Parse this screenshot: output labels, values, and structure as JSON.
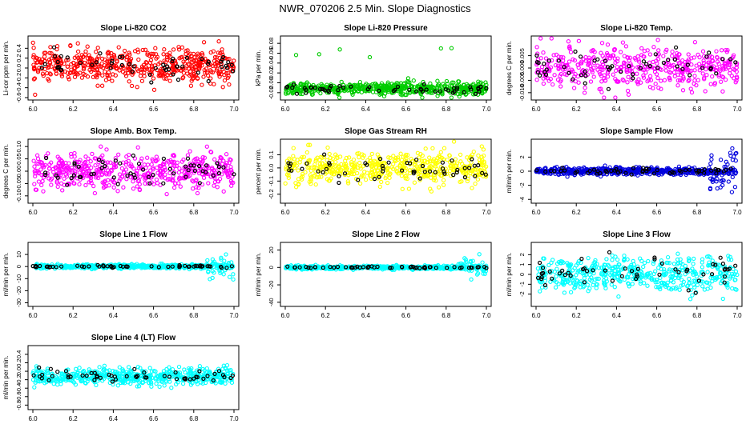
{
  "page": {
    "title": "NWR_070206  2.5 Min. Slope Diagnostics"
  },
  "chart_data": [
    {
      "type": "scatter",
      "title": "Slope Li-820 CO2",
      "ylabel": "Li-cor ppm per min.",
      "xlim": [
        6.0,
        7.0
      ],
      "ylim": [
        -0.6,
        0.6
      ],
      "yticks": [
        "-0.6",
        "-0.4",
        "-0.2",
        "0.0",
        "0.2",
        "0.4"
      ],
      "xticks": [
        "6.0",
        "6.2",
        "6.4",
        "6.6",
        "6.8",
        "7.0"
      ],
      "color": "#ff0000",
      "center": 0.05,
      "spread": 0.17,
      "overlay_spread": 0.12,
      "n": 520
    },
    {
      "type": "scatter",
      "title": "Slope Li-820 Pressure",
      "ylabel": "kPa per min.",
      "xlim": [
        6.0,
        7.0
      ],
      "ylim": [
        -0.03,
        0.09
      ],
      "yticks": [
        "-0.02",
        "0.00",
        "0.02",
        "0.04",
        "0.06",
        "0.08"
      ],
      "xticks": [
        "6.0",
        "6.2",
        "6.4",
        "6.6",
        "6.8",
        "7.0"
      ],
      "color": "#00cc00",
      "center": -0.012,
      "spread": 0.006,
      "overlay_spread": 0.005,
      "n": 560
    },
    {
      "type": "scatter",
      "title": "Slope Li-820 Temp.",
      "ylabel": "degrees C per min.",
      "xlim": [
        6.0,
        7.0
      ],
      "ylim": [
        -0.012,
        0.012
      ],
      "yticks": [
        "-0.010",
        "-0.005",
        "0.000",
        "0.005"
      ],
      "xticks": [
        "6.0",
        "6.2",
        "6.4",
        "6.6",
        "6.8",
        "7.0"
      ],
      "color": "#ff00ff",
      "center": 0.0005,
      "spread": 0.004,
      "overlay_spread": 0.003,
      "n": 460
    },
    {
      "type": "scatter",
      "title": "Slope Amb. Box Temp.",
      "ylabel": "degrees C per min.",
      "xlim": [
        6.0,
        7.0
      ],
      "ylim": [
        -0.12,
        0.12
      ],
      "yticks": [
        "-0.10",
        "-0.05",
        "0.00",
        "0.05",
        "0.10"
      ],
      "xticks": [
        "6.0",
        "6.2",
        "6.4",
        "6.6",
        "6.8",
        "7.0"
      ],
      "color": "#ff00ff",
      "center": 0.0,
      "spread": 0.035,
      "overlay_spread": 0.03,
      "n": 500
    },
    {
      "type": "scatter",
      "title": "Slope Gas Stream RH",
      "ylabel": "percent per min.",
      "xlim": [
        6.0,
        7.0
      ],
      "ylim": [
        -0.25,
        0.2
      ],
      "yticks": [
        "-0.2",
        "-0.1",
        "0.0",
        "0.1"
      ],
      "xticks": [
        "6.0",
        "6.2",
        "6.4",
        "6.6",
        "6.8",
        "7.0"
      ],
      "color": "#ffff00",
      "center": 0.0,
      "spread": 0.06,
      "overlay_spread": 0.05,
      "n": 520
    },
    {
      "type": "scatter",
      "title": "Slope Sample Flow",
      "ylabel": "ml/min per min.",
      "xlim": [
        6.0,
        7.0
      ],
      "ylim": [
        -4.2,
        4.2
      ],
      "yticks": [
        "-4",
        "-2",
        "0",
        "2"
      ],
      "xticks": [
        "6.0",
        "6.2",
        "6.4",
        "6.6",
        "6.8",
        "7.0"
      ],
      "color": "#0000dd",
      "center": 0.0,
      "spread": 0.25,
      "overlay_spread": 0.2,
      "n": 560
    },
    {
      "type": "scatter",
      "title": "Slope Line 1 Flow",
      "ylabel": "ml/min per min.",
      "xlim": [
        6.0,
        7.0
      ],
      "ylim": [
        -31,
        18
      ],
      "yticks": [
        "-30",
        "-20",
        "-10",
        "0",
        "10"
      ],
      "xticks": [
        "6.0",
        "6.2",
        "6.4",
        "6.6",
        "6.8",
        "7.0"
      ],
      "color": "#00ffff",
      "center": 0.0,
      "spread": 0.8,
      "overlay_spread": 0.5,
      "n": 540
    },
    {
      "type": "scatter",
      "title": "Slope Line 2 Flow",
      "ylabel": "ml/min per min.",
      "xlim": [
        6.0,
        7.0
      ],
      "ylim": [
        -42,
        26
      ],
      "yticks": [
        "-40",
        "-20",
        "0",
        "20"
      ],
      "xticks": [
        "6.0",
        "6.2",
        "6.4",
        "6.6",
        "6.8",
        "7.0"
      ],
      "color": "#00ffff",
      "center": 0.0,
      "spread": 1.0,
      "overlay_spread": 0.6,
      "n": 540
    },
    {
      "type": "scatter",
      "title": "Slope Line 3 Flow",
      "ylabel": "ml/min per min.",
      "xlim": [
        6.0,
        7.0
      ],
      "ylim": [
        -3.0,
        3.0
      ],
      "yticks": [
        "-2",
        "-1",
        "0",
        "1",
        "2"
      ],
      "xticks": [
        "6.0",
        "6.2",
        "6.4",
        "6.6",
        "6.8",
        "7.0"
      ],
      "color": "#00ffff",
      "center": 0.0,
      "spread": 0.85,
      "overlay_spread": 0.8,
      "n": 480
    },
    {
      "type": "scatter",
      "title": "Slope Line 4 (LT) Flow",
      "ylabel": "ml/min per min.",
      "xlim": [
        6.0,
        7.0
      ],
      "ylim": [
        -0.85,
        0.55
      ],
      "yticks": [
        "-0.8",
        "-0.6",
        "-0.4",
        "-0.2",
        "0.0",
        "0.2",
        "0.4"
      ],
      "xticks": [
        "6.0",
        "6.2",
        "6.4",
        "6.6",
        "6.8",
        "7.0"
      ],
      "color": "#00ffff",
      "center": -0.12,
      "spread": 0.1,
      "overlay_spread": 0.07,
      "n": 540
    }
  ]
}
